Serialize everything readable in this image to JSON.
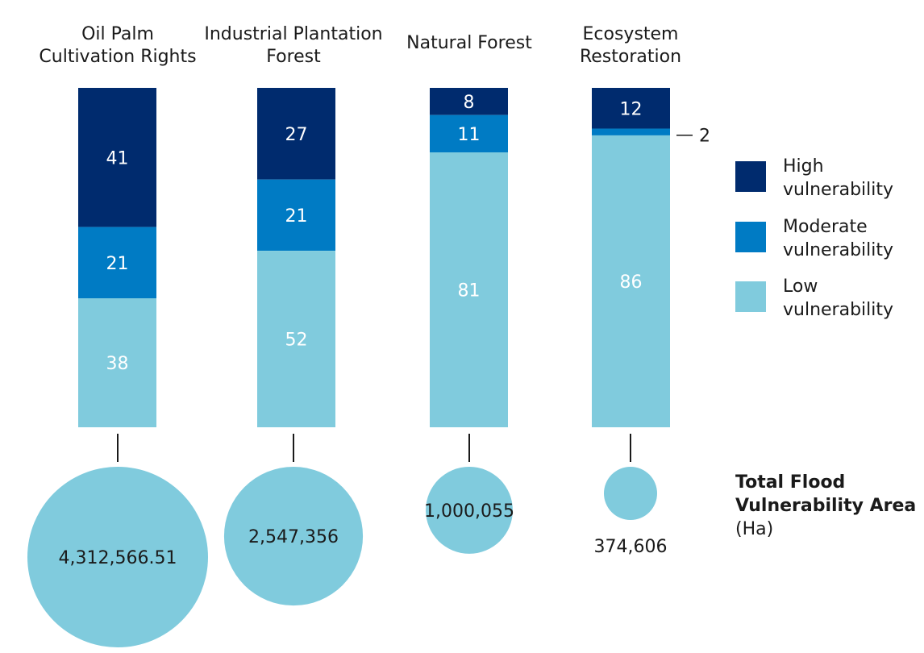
{
  "chart_data": {
    "type": "bar",
    "stacked": true,
    "normalized_percent": true,
    "categories": [
      [
        "Oil Palm",
        "Cultivation Rights"
      ],
      [
        "Industrial Plantation",
        "Forest"
      ],
      [
        "Natural Forest"
      ],
      [
        "Ecosystem",
        "Restoration"
      ]
    ],
    "series": [
      {
        "name": [
          "High",
          "vulnerability"
        ],
        "color": "#002b6e",
        "values": [
          41,
          27,
          8,
          12
        ]
      },
      {
        "name": [
          "Moderate",
          "vulnerability"
        ],
        "color": "#007bc4",
        "values": [
          21,
          21,
          11,
          2
        ]
      },
      {
        "name": [
          "Low",
          "vulnerability"
        ],
        "color": "#80cbdd",
        "values": [
          38,
          52,
          81,
          86
        ]
      }
    ],
    "ylim": [
      0,
      100
    ],
    "legend_position": "right",
    "totals": {
      "title": [
        "Total Flood",
        "Vulnerability Area"
      ],
      "unit": "(Ha)",
      "color": "#80cbdd",
      "values": [
        4312566.51,
        2547356,
        1000055,
        374606
      ],
      "labels": [
        "4,312,566.51",
        "2,547,356",
        "1,000,055",
        "374,606"
      ]
    }
  }
}
